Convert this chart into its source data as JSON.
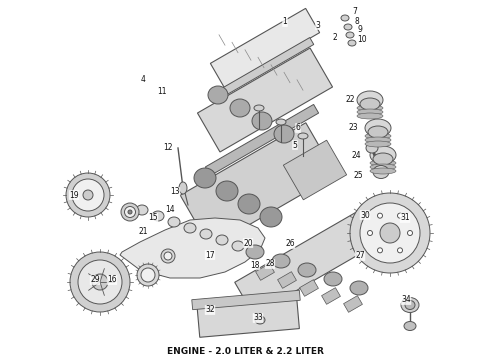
{
  "caption": "ENGINE - 2.0 LITER & 2.2 LITER",
  "caption_fontsize": 6.5,
  "caption_fontweight": "bold",
  "bg_color": "#ffffff",
  "fig_width": 4.9,
  "fig_height": 3.6,
  "dpi": 100
}
